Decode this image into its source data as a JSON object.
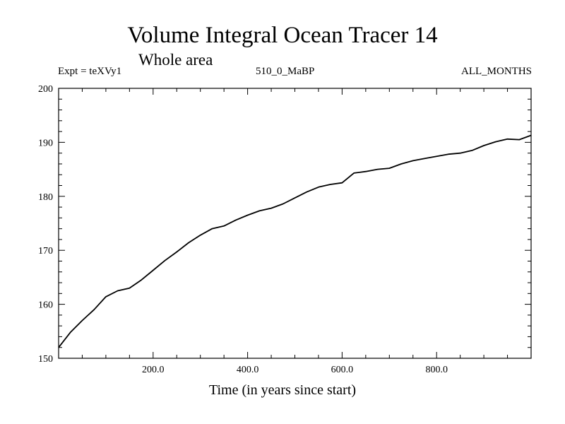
{
  "header": {
    "title": "Volume Integral Ocean Tracer 14",
    "subtitle": "Whole area",
    "expt": "Expt = teXVy1",
    "period": "510_0_MaBP",
    "months": "ALL_MONTHS"
  },
  "chart_data": {
    "type": "line",
    "title": "Volume Integral Ocean Tracer 14",
    "subtitle": "Whole area",
    "xlabel": "Time (in years since start)",
    "ylabel": "",
    "xlim": [
      0,
      1000
    ],
    "ylim": [
      150,
      200
    ],
    "xticks": [
      200,
      400,
      600,
      800
    ],
    "xtick_labels": [
      "200.0",
      "400.0",
      "600.0",
      "800.0"
    ],
    "yticks": [
      150,
      160,
      170,
      180,
      190,
      200
    ],
    "ytick_labels": [
      "150",
      "160",
      "170",
      "180",
      "190",
      "200"
    ],
    "grid": false,
    "series": [
      {
        "color": "#000000",
        "x": [
          0,
          25,
          50,
          75,
          100,
          125,
          150,
          175,
          200,
          225,
          250,
          275,
          300,
          325,
          350,
          375,
          400,
          425,
          450,
          475,
          500,
          525,
          550,
          575,
          600,
          625,
          650,
          675,
          700,
          725,
          750,
          775,
          800,
          825,
          850,
          875,
          900,
          925,
          950,
          975,
          1000
        ],
        "y": [
          152.0,
          154.8,
          157.0,
          159.0,
          161.4,
          162.5,
          163.0,
          164.5,
          166.3,
          168.1,
          169.7,
          171.4,
          172.8,
          174.0,
          174.5,
          175.6,
          176.5,
          177.3,
          177.8,
          178.6,
          179.7,
          180.8,
          181.7,
          182.2,
          182.5,
          184.3,
          184.6,
          185.0,
          185.2,
          186.0,
          186.6,
          187.0,
          187.4,
          187.8,
          188.0,
          188.5,
          189.4,
          190.1,
          190.6,
          190.5,
          191.3
        ]
      }
    ]
  },
  "xaxis": {
    "label": "Time (in years since start)"
  }
}
